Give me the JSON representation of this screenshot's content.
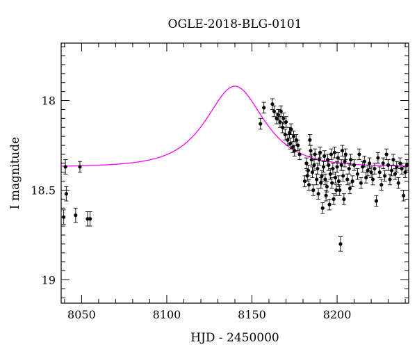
{
  "chart_data": {
    "type": "scatter",
    "title": "OGLE-2018-BLG-0101",
    "xlabel": "HJD - 2450000",
    "ylabel": "I magnitude",
    "xlim": [
      8038,
      8242
    ],
    "ylim": [
      19.13,
      17.68
    ],
    "y_inverted": true,
    "x_ticks": [
      8050,
      8100,
      8150,
      8200
    ],
    "y_ticks": [
      18,
      18.5,
      19
    ],
    "x_tick_labels": [
      "8050",
      "8100",
      "8150",
      "8200"
    ],
    "y_tick_labels": [
      "18",
      "18.5",
      "19"
    ],
    "grid": false,
    "legend": "none",
    "colors": {
      "points": "#000000",
      "model": "#ff00ff",
      "axes": "#000000"
    },
    "model_curve": {
      "kind": "microlensing-model",
      "baseline_mag": 18.37,
      "peak_mag": 17.92,
      "t0": 8140,
      "u0": 0.85,
      "tE": 22
    },
    "series": [
      {
        "type": "points-with-errorbars",
        "x": [
          8039.5,
          8040.5,
          8041,
          8046.5,
          8049,
          8053.5,
          8055,
          8155,
          8157,
          8162,
          8163,
          8164.5,
          8165.5,
          8166.5,
          8167,
          8168,
          8168.5,
          8169.5,
          8170,
          8171,
          8172,
          8172.5,
          8173,
          8174,
          8174.5,
          8175,
          8176,
          8177,
          8178,
          8181,
          8182,
          8182.5,
          8183,
          8183.5,
          8184,
          8184.5,
          8185,
          8185.5,
          8186,
          8186.5,
          8187,
          8188,
          8188.5,
          8189,
          8189.5,
          8190,
          8190.5,
          8191,
          8191.5,
          8192,
          8192.5,
          8193,
          8193.5,
          8194,
          8194.5,
          8195,
          8195.5,
          8196,
          8196.5,
          8197,
          8197.5,
          8198,
          8198.5,
          8199,
          8199.5,
          8200,
          8200.5,
          8201,
          8201.5,
          8202,
          8202.5,
          8203,
          8203.5,
          8204,
          8204.5,
          8205,
          8206,
          8207,
          8207.5,
          8208,
          8209,
          8210,
          8212,
          8213,
          8214,
          8215,
          8216,
          8217,
          8218,
          8219,
          8220,
          8221,
          8222,
          8223,
          8224,
          8225,
          8226,
          8227,
          8228,
          8229,
          8230,
          8231,
          8232,
          8233,
          8234,
          8235,
          8236,
          8237,
          8238,
          8239,
          8240,
          8241
        ],
        "y": [
          18.65,
          18.37,
          18.52,
          18.64,
          18.37,
          18.66,
          18.66,
          18.13,
          18.04,
          18.02,
          18.06,
          18.1,
          18.08,
          18.12,
          18.06,
          18.15,
          18.1,
          18.19,
          18.12,
          18.22,
          18.18,
          18.24,
          18.16,
          18.26,
          18.2,
          18.28,
          18.22,
          18.25,
          18.3,
          18.45,
          18.35,
          18.42,
          18.39,
          18.47,
          18.22,
          18.28,
          18.33,
          18.4,
          18.5,
          18.36,
          18.3,
          18.44,
          18.38,
          18.52,
          18.33,
          18.29,
          18.46,
          18.42,
          18.6,
          18.37,
          18.31,
          18.44,
          18.53,
          18.48,
          18.33,
          18.36,
          18.58,
          18.41,
          18.3,
          18.46,
          18.38,
          18.55,
          18.29,
          18.43,
          18.5,
          18.37,
          18.32,
          18.45,
          18.5,
          18.8,
          18.36,
          18.28,
          18.42,
          18.55,
          18.34,
          18.3,
          18.44,
          18.38,
          18.49,
          18.33,
          18.45,
          18.36,
          18.41,
          18.3,
          18.46,
          18.37,
          18.34,
          18.43,
          18.39,
          18.35,
          18.4,
          18.44,
          18.38,
          18.56,
          18.32,
          18.4,
          18.47,
          18.35,
          18.42,
          18.3,
          18.36,
          18.44,
          18.39,
          18.33,
          18.41,
          18.37,
          18.46,
          18.35,
          18.38,
          18.53,
          18.4,
          18.36
        ],
        "err": [
          0.04,
          0.04,
          0.04,
          0.04,
          0.03,
          0.04,
          0.04,
          0.03,
          0.03,
          0.03,
          0.03,
          0.03,
          0.03,
          0.03,
          0.03,
          0.03,
          0.03,
          0.03,
          0.03,
          0.03,
          0.03,
          0.03,
          0.03,
          0.03,
          0.03,
          0.03,
          0.03,
          0.03,
          0.03,
          0.03,
          0.03,
          0.03,
          0.03,
          0.03,
          0.03,
          0.03,
          0.03,
          0.03,
          0.03,
          0.03,
          0.03,
          0.03,
          0.03,
          0.03,
          0.03,
          0.03,
          0.03,
          0.03,
          0.03,
          0.03,
          0.03,
          0.03,
          0.03,
          0.03,
          0.03,
          0.03,
          0.03,
          0.03,
          0.03,
          0.03,
          0.03,
          0.03,
          0.03,
          0.03,
          0.03,
          0.03,
          0.03,
          0.03,
          0.03,
          0.04,
          0.03,
          0.03,
          0.03,
          0.03,
          0.03,
          0.03,
          0.03,
          0.03,
          0.03,
          0.03,
          0.03,
          0.03,
          0.03,
          0.03,
          0.03,
          0.03,
          0.03,
          0.03,
          0.03,
          0.03,
          0.03,
          0.03,
          0.03,
          0.03,
          0.03,
          0.03,
          0.03,
          0.03,
          0.03,
          0.03,
          0.03,
          0.03,
          0.03,
          0.03,
          0.03,
          0.03,
          0.03,
          0.03,
          0.03,
          0.03,
          0.03,
          0.03
        ]
      }
    ]
  }
}
